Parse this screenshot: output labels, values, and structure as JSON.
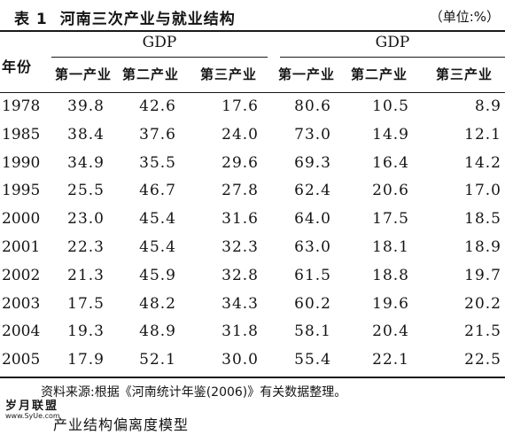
{
  "caption": {
    "table_no": "表 1",
    "title": "河南三次产业与就业结构",
    "unit": "（单位:%）"
  },
  "header": {
    "year_label": "年份",
    "groups": [
      "GDP",
      "GDP"
    ],
    "columns": [
      "第一产业",
      "第二产业",
      "第三产业",
      "第一产业",
      "第二产业",
      "第三产业"
    ]
  },
  "rows": [
    {
      "year": "1978",
      "values": [
        "39.8",
        "42.6",
        "17.6",
        "80.6",
        "10.5",
        "8.9"
      ]
    },
    {
      "year": "1985",
      "values": [
        "38.4",
        "37.6",
        "24.0",
        "73.0",
        "14.9",
        "12.1"
      ]
    },
    {
      "year": "1990",
      "values": [
        "34.9",
        "35.5",
        "29.6",
        "69.3",
        "16.4",
        "14.2"
      ]
    },
    {
      "year": "1995",
      "values": [
        "25.5",
        "46.7",
        "27.8",
        "62.4",
        "20.6",
        "17.0"
      ]
    },
    {
      "year": "2000",
      "values": [
        "23.0",
        "45.4",
        "31.6",
        "64.0",
        "17.5",
        "18.5"
      ]
    },
    {
      "year": "2001",
      "values": [
        "22.3",
        "45.4",
        "32.3",
        "63.0",
        "18.1",
        "18.9"
      ]
    },
    {
      "year": "2002",
      "values": [
        "21.3",
        "45.9",
        "32.8",
        "61.5",
        "18.8",
        "19.7"
      ]
    },
    {
      "year": "2003",
      "values": [
        "17.5",
        "48.2",
        "34.3",
        "60.2",
        "19.6",
        "20.2"
      ]
    },
    {
      "year": "2004",
      "values": [
        "19.3",
        "48.9",
        "31.8",
        "58.1",
        "20.4",
        "21.5"
      ]
    },
    {
      "year": "2005",
      "values": [
        "17.9",
        "52.1",
        "30.0",
        "55.4",
        "22.1",
        "22.5"
      ]
    }
  ],
  "source": "资料来源:根据《河南统计年鉴(2006)》有关数据整理。",
  "next_heading": "产业结构偏离度模型",
  "watermark": {
    "main": "岁月联盟",
    "sub": "www.SyUe.com"
  }
}
